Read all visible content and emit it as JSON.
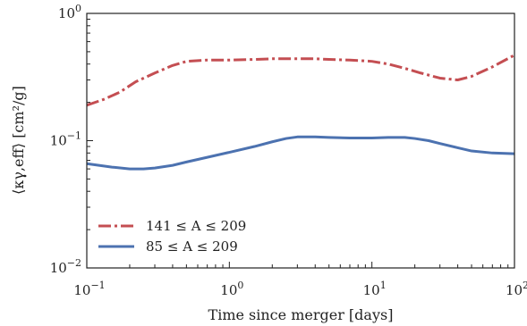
{
  "chart_data": {
    "type": "line",
    "xscale": "log",
    "yscale": "log",
    "xlim": [
      0.1,
      100
    ],
    "ylim": [
      0.01,
      1
    ],
    "xlabel": "Time since merger [days]",
    "ylabel": "⟨κγ,eff⟩ [cm²/g]",
    "xticks": [
      {
        "value": 0.1,
        "base": "10",
        "exp": "−1"
      },
      {
        "value": 1,
        "base": "10",
        "exp": "0"
      },
      {
        "value": 10,
        "base": "10",
        "exp": "1"
      },
      {
        "value": 100,
        "base": "10",
        "exp": "2"
      }
    ],
    "yticks": [
      {
        "value": 0.01,
        "base": "10",
        "exp": "−2"
      },
      {
        "value": 0.1,
        "base": "10",
        "exp": "−1"
      },
      {
        "value": 1,
        "base": "10",
        "exp": "0"
      }
    ],
    "legend_position": "lower-left",
    "series": [
      {
        "name": "141 ≤ A ≤ 209",
        "color": "#c44e52",
        "style": "dashdot",
        "x": [
          0.1,
          0.13,
          0.17,
          0.22,
          0.3,
          0.4,
          0.5,
          0.7,
          1,
          1.5,
          2,
          3,
          4,
          5,
          7,
          10,
          13,
          17,
          22,
          30,
          40,
          50,
          70,
          100
        ],
        "y": [
          0.19,
          0.21,
          0.24,
          0.29,
          0.34,
          0.39,
          0.42,
          0.43,
          0.43,
          0.435,
          0.44,
          0.44,
          0.44,
          0.435,
          0.43,
          0.42,
          0.4,
          0.37,
          0.34,
          0.31,
          0.3,
          0.32,
          0.38,
          0.47
        ]
      },
      {
        "name": "85 ≤ A ≤ 209",
        "color": "#4c72b0",
        "style": "solid",
        "x": [
          0.1,
          0.15,
          0.2,
          0.25,
          0.3,
          0.4,
          0.5,
          0.7,
          1,
          1.5,
          2,
          2.5,
          3,
          4,
          5,
          7,
          10,
          13,
          17,
          20,
          25,
          30,
          40,
          50,
          70,
          100
        ],
        "y": [
          0.066,
          0.062,
          0.06,
          0.06,
          0.061,
          0.064,
          0.068,
          0.074,
          0.081,
          0.09,
          0.098,
          0.104,
          0.107,
          0.107,
          0.106,
          0.105,
          0.105,
          0.106,
          0.106,
          0.104,
          0.1,
          0.095,
          0.088,
          0.083,
          0.08,
          0.079
        ]
      }
    ]
  }
}
